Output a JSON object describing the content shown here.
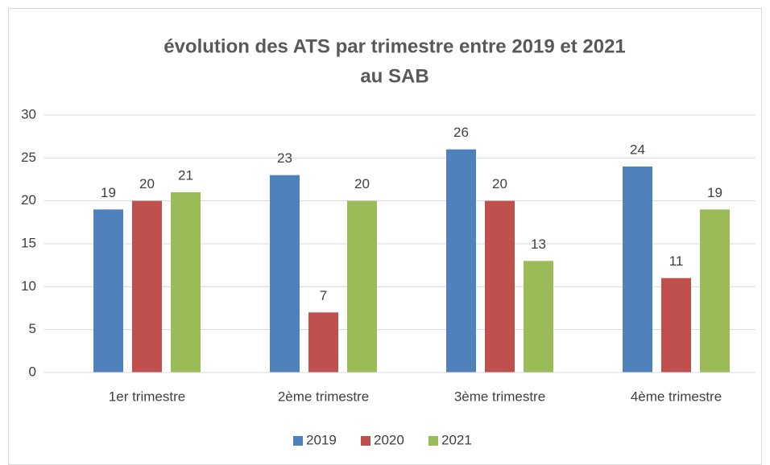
{
  "chart_data": {
    "type": "bar",
    "title": [
      "évolution des ATS par trimestre entre 2019 et 2021",
      "au SAB"
    ],
    "categories": [
      "1er trimestre",
      "2ème trimestre",
      "3ème trimestre",
      "4ème trimestre"
    ],
    "series": [
      {
        "name": "2019",
        "color": "#4f81bd",
        "values": [
          19,
          23,
          26,
          24
        ]
      },
      {
        "name": "2020",
        "color": "#c0504d",
        "values": [
          20,
          7,
          20,
          11
        ]
      },
      {
        "name": "2021",
        "color": "#9bbb59",
        "values": [
          21,
          20,
          13,
          19
        ]
      }
    ],
    "ylim": [
      0,
      30
    ],
    "yticks": [
      0,
      5,
      10,
      15,
      20,
      25,
      30
    ],
    "grid": true,
    "legend": "bottom"
  }
}
